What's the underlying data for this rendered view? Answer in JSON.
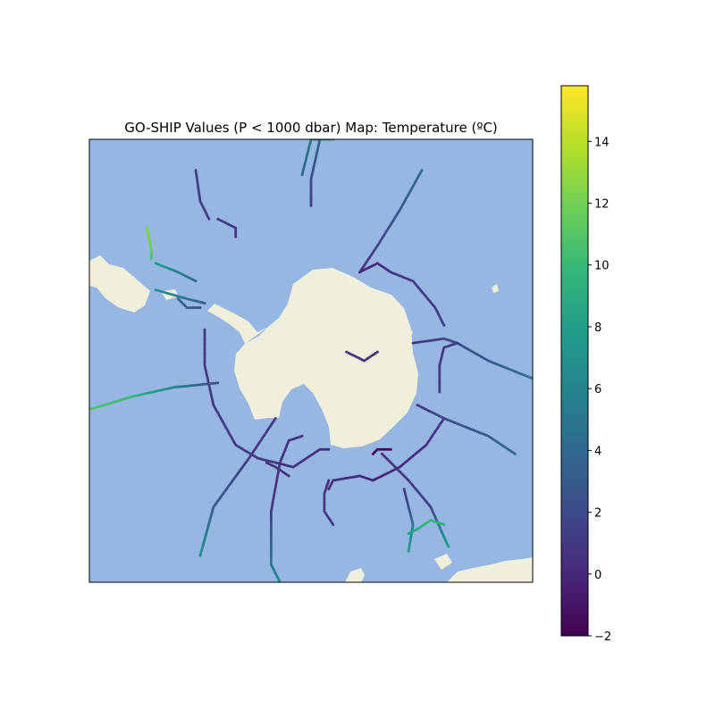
{
  "chart_data": {
    "type": "scatter",
    "title": "GO-SHIP Values (P < 1000 dbar) Map: Temperature (ºC)",
    "projection": "south polar stereographic",
    "grid": false,
    "colorbar": {
      "colormap": "viridis",
      "range": [
        -2.0,
        15.8
      ],
      "ticks": [
        -2,
        0,
        2,
        4,
        6,
        8,
        10,
        12,
        14
      ],
      "tick_labels": [
        "−2",
        "0",
        "2",
        "4",
        "6",
        "8",
        "10",
        "12",
        "14"
      ],
      "stops": [
        "#440154",
        "#482878",
        "#3e4a89",
        "#31688e",
        "#26828e",
        "#1f9e89",
        "#35b779",
        "#6ece58",
        "#b5de2b",
        "#fde725"
      ]
    },
    "colors": {
      "ocean": "#97b6e1",
      "land": "#efefdb",
      "frame": "#000000"
    },
    "transects": [
      {
        "points": [
          [
            0.52,
            0.0
          ],
          [
            0.5,
            0.09
          ],
          [
            0.5,
            0.15
          ]
        ],
        "values": [
          4,
          2,
          1
        ]
      },
      {
        "points": [
          [
            0.48,
            0.08
          ],
          [
            0.5,
            0.0
          ],
          [
            0.55,
            0.0
          ]
        ],
        "values": [
          4,
          5,
          6
        ]
      },
      {
        "points": [
          [
            0.24,
            0.07
          ],
          [
            0.25,
            0.14
          ],
          [
            0.27,
            0.18
          ]
        ],
        "values": [
          1.5,
          1.2,
          1.0
        ]
      },
      {
        "points": [
          [
            0.29,
            0.18
          ],
          [
            0.33,
            0.2
          ],
          [
            0.33,
            0.22
          ]
        ],
        "values": [
          1.2,
          1.0,
          0.8
        ]
      },
      {
        "points": [
          [
            0.13,
            0.2
          ],
          [
            0.14,
            0.25
          ],
          [
            0.14,
            0.27
          ]
        ],
        "values": [
          12.5,
          11.5,
          10.5
        ]
      },
      {
        "points": [
          [
            0.15,
            0.28
          ],
          [
            0.2,
            0.3
          ],
          [
            0.24,
            0.32
          ]
        ],
        "values": [
          8,
          6,
          4
        ]
      },
      {
        "points": [
          [
            0.15,
            0.34
          ],
          [
            0.22,
            0.36
          ],
          [
            0.26,
            0.37
          ]
        ],
        "values": [
          7,
          5,
          3
        ]
      },
      {
        "points": [
          [
            0.2,
            0.36
          ],
          [
            0.22,
            0.38
          ],
          [
            0.25,
            0.38
          ]
        ],
        "values": [
          4,
          3,
          2
        ]
      },
      {
        "points": [
          [
            0.75,
            0.07
          ],
          [
            0.7,
            0.16
          ],
          [
            0.65,
            0.24
          ],
          [
            0.61,
            0.3
          ]
        ],
        "values": [
          4,
          3,
          1.5,
          0.5
        ]
      },
      {
        "points": [
          [
            0.61,
            0.3
          ],
          [
            0.65,
            0.28
          ],
          [
            0.68,
            0.3
          ],
          [
            0.73,
            0.32
          ],
          [
            0.78,
            0.38
          ],
          [
            0.8,
            0.42
          ]
        ],
        "values": [
          0,
          0,
          0.5,
          1,
          1,
          1
        ]
      },
      {
        "points": [
          [
            0.73,
            0.46
          ],
          [
            0.8,
            0.45
          ],
          [
            0.83,
            0.46
          ],
          [
            0.9,
            0.5
          ],
          [
            1.0,
            0.54
          ]
        ],
        "values": [
          1,
          1.5,
          2,
          3,
          4.5
        ]
      },
      {
        "points": [
          [
            0.83,
            0.46
          ],
          [
            0.8,
            0.47
          ],
          [
            0.79,
            0.51
          ],
          [
            0.79,
            0.57
          ]
        ],
        "values": [
          1,
          1,
          1,
          1
        ]
      },
      {
        "points": [
          [
            0.74,
            0.6
          ],
          [
            0.8,
            0.63
          ],
          [
            0.9,
            0.67
          ],
          [
            0.96,
            0.71
          ]
        ],
        "values": [
          1,
          2,
          3,
          4
        ]
      },
      {
        "points": [
          [
            0.8,
            0.63
          ],
          [
            0.76,
            0.69
          ],
          [
            0.7,
            0.74
          ],
          [
            0.64,
            0.77
          ]
        ],
        "values": [
          1,
          0.5,
          0,
          -0.5
        ]
      },
      {
        "points": [
          [
            0.68,
            0.7
          ],
          [
            0.65,
            0.7
          ],
          [
            0.64,
            0.71
          ]
        ],
        "values": [
          -1.6,
          -1.8,
          -1.8
        ]
      },
      {
        "points": [
          [
            0.66,
            0.71
          ],
          [
            0.72,
            0.77
          ],
          [
            0.77,
            0.83
          ],
          [
            0.81,
            0.92
          ]
        ],
        "values": [
          0.5,
          1,
          1.5,
          8
        ]
      },
      {
        "points": [
          [
            0.64,
            0.77
          ],
          [
            0.61,
            0.76
          ],
          [
            0.55,
            0.77
          ],
          [
            0.54,
            0.79
          ]
        ],
        "values": [
          0,
          0,
          0.5,
          0.5
        ]
      },
      {
        "points": [
          [
            0.54,
            0.77
          ],
          [
            0.53,
            0.8
          ],
          [
            0.53,
            0.84
          ],
          [
            0.55,
            0.87
          ]
        ],
        "values": [
          0.5,
          0.7,
          0.8,
          1
        ]
      },
      {
        "points": [
          [
            0.71,
            0.79
          ],
          [
            0.72,
            0.83
          ],
          [
            0.73,
            0.87
          ],
          [
            0.72,
            0.93
          ]
        ],
        "values": [
          1,
          2,
          5,
          8
        ]
      },
      {
        "points": [
          [
            0.26,
            0.43
          ],
          [
            0.26,
            0.51
          ],
          [
            0.28,
            0.6
          ],
          [
            0.33,
            0.69
          ],
          [
            0.38,
            0.72
          ],
          [
            0.46,
            0.74
          ],
          [
            0.52,
            0.7
          ],
          [
            0.54,
            0.7
          ]
        ],
        "values": [
          1,
          1,
          1,
          1,
          1,
          0.5,
          0.5,
          0
        ]
      },
      {
        "points": [
          [
            0.0,
            0.61
          ],
          [
            0.1,
            0.58
          ],
          [
            0.19,
            0.56
          ],
          [
            0.29,
            0.55
          ]
        ],
        "values": [
          11,
          10,
          6,
          2
        ]
      },
      {
        "points": [
          [
            0.42,
            0.63
          ],
          [
            0.36,
            0.72
          ],
          [
            0.28,
            0.83
          ],
          [
            0.25,
            0.94
          ]
        ],
        "values": [
          1,
          1,
          3,
          7
        ]
      },
      {
        "points": [
          [
            0.48,
            0.67
          ],
          [
            0.45,
            0.68
          ],
          [
            0.43,
            0.73
          ],
          [
            0.41,
            0.84
          ],
          [
            0.41,
            0.96
          ],
          [
            0.43,
            1.0
          ]
        ],
        "values": [
          0.5,
          0.5,
          0.5,
          1,
          5,
          7
        ]
      },
      {
        "points": [
          [
            0.4,
            0.73
          ],
          [
            0.42,
            0.74
          ],
          [
            0.45,
            0.76
          ]
        ],
        "values": [
          0.5,
          0.5,
          0.5
        ]
      },
      {
        "points": [
          [
            0.58,
            0.48
          ],
          [
            0.62,
            0.5
          ],
          [
            0.65,
            0.48
          ]
        ],
        "values": [
          0.5,
          0.5,
          0.5
        ]
      },
      {
        "points": [
          [
            0.72,
            0.89
          ],
          [
            0.74,
            0.88
          ],
          [
            0.77,
            0.86
          ],
          [
            0.8,
            0.87
          ]
        ],
        "values": [
          8,
          9,
          10,
          9
        ]
      }
    ]
  }
}
